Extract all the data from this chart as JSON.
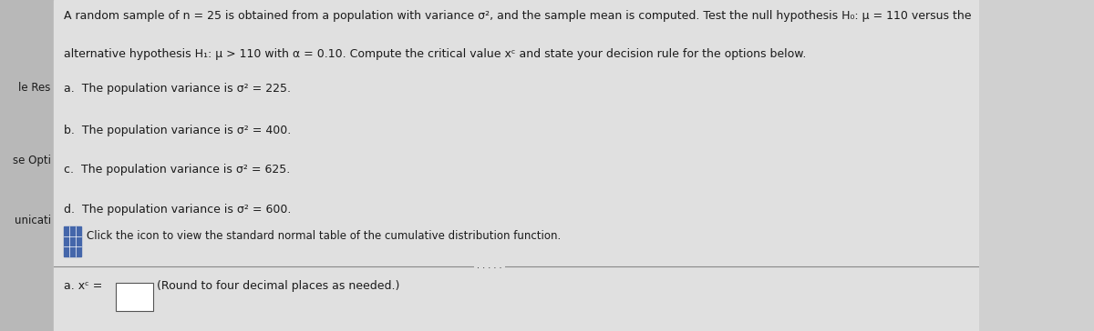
{
  "bg_color": "#d0d0d0",
  "left_strip_color": "#b8b8b8",
  "main_bg": "#e0e0e0",
  "text_color": "#1a1a1a",
  "title_line1": "A random sample of n = 25 is obtained from a population with variance σ², and the sample mean is computed. Test the null hypothesis H₀: μ = 110 versus the",
  "title_line2": "alternative hypothesis H₁: μ > 110 with α = 0.10. Compute the critical value xᶜ and state your decision rule for the options below.",
  "option_a": "a.  The population variance is σ² = 225.",
  "option_b": "b.  The population variance is σ² = 400.",
  "option_c": "c.  The population variance is σ² = 625.",
  "option_d": "d.  The population variance is σ² = 600.",
  "icon_text": "Click the icon to view the standard normal table of the cumulative distribution function.",
  "answer_label": "a. xᶜ = ",
  "answer_note": "(Round to four decimal places as needed.)"
}
